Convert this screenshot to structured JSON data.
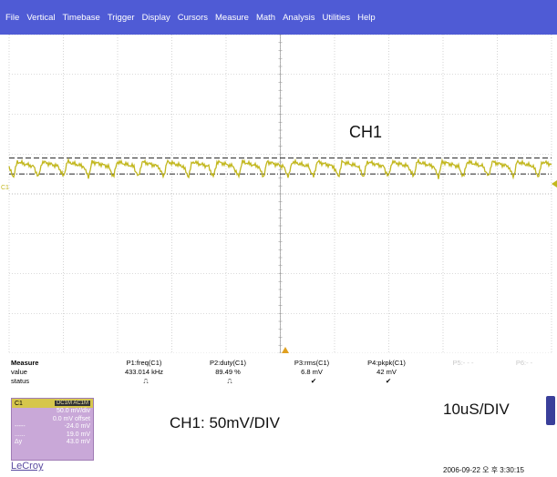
{
  "menu": [
    "File",
    "Vertical",
    "Timebase",
    "Trigger",
    "Display",
    "Cursors",
    "Measure",
    "Math",
    "Analysis",
    "Utilities",
    "Help"
  ],
  "scope": {
    "grid_color": "#b7b7b7",
    "trace_color": "#c2b71e",
    "channel_marker": "C1",
    "divisions_x": 10,
    "divisions_y": 8,
    "trace_offset_div": -0.25,
    "ref_line_levels_div": [
      -0.05,
      -0.45
    ],
    "trigger_position_fraction": 0.5
  },
  "annotations": {
    "ch1": "CH1",
    "ch1_scale": "CH1: 50mV/DIV",
    "timebase": "10uS/DIV"
  },
  "measure": {
    "title": "Measure",
    "row_labels": [
      "value",
      "status"
    ],
    "columns": [
      {
        "param": "P1:freq(C1)",
        "value": "433.014 kHz",
        "status": "⎍"
      },
      {
        "param": "P2:duty(C1)",
        "value": "89.49 %",
        "status": "⎍"
      },
      {
        "param": "P3:rms(C1)",
        "value": "6.8 mV",
        "status": "✔"
      },
      {
        "param": "P4:pkpk(C1)",
        "value": "42 mV",
        "status": "✔"
      },
      {
        "param": "P5:- - -",
        "value": "",
        "status": ""
      },
      {
        "param": "P6:- -",
        "value": "",
        "status": ""
      }
    ]
  },
  "channel_descriptor": {
    "name": "C1",
    "coupling": "DC1M",
    "badge": "AC1M",
    "rows": [
      {
        "label": "",
        "value": "50.0 mV/div"
      },
      {
        "label": "",
        "value": "0.0 mV offset"
      },
      {
        "label": "-----",
        "value": "-24.0 mV"
      },
      {
        "label": "......",
        "value": "19.0 mV"
      },
      {
        "label": "Δy",
        "value": "43.0 mV"
      }
    ]
  },
  "brand": "LeCroy",
  "datetime": "2006-09-22 오 후 3:30:15"
}
